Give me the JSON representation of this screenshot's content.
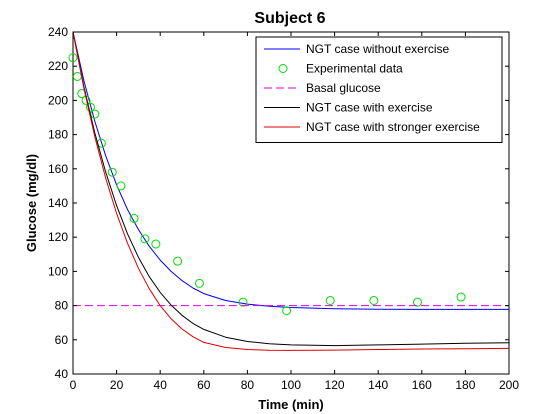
{
  "chart_data": {
    "type": "line",
    "title": "Subject 6",
    "xlabel": "Time (min)",
    "ylabel": "Glucose (mg/dl)",
    "xlim": [
      0,
      200
    ],
    "ylim": [
      40,
      240
    ],
    "xticks": [
      0,
      20,
      40,
      60,
      80,
      100,
      120,
      140,
      160,
      180,
      200
    ],
    "yticks": [
      40,
      60,
      80,
      100,
      120,
      140,
      160,
      180,
      200,
      220,
      240
    ],
    "grid": false,
    "legend_position": "top-right",
    "series": [
      {
        "name": "NGT case without exercise",
        "color": "#0000ff",
        "style": "solid",
        "x": [
          0,
          5,
          10,
          15,
          20,
          25,
          30,
          35,
          40,
          45,
          50,
          55,
          60,
          70,
          80,
          90,
          100,
          120,
          140,
          160,
          180,
          200
        ],
        "y": [
          240,
          211.5,
          187.8,
          167.6,
          150.6,
          136.2,
          124.5,
          114.7,
          106.6,
          100.0,
          94.6,
          90.3,
          87.0,
          83.0,
          80.9,
          79.6,
          78.9,
          78.2,
          77.9,
          77.8,
          77.8,
          77.8
        ]
      },
      {
        "name": "Experimental data",
        "color": "#00dd00",
        "style": "markers",
        "x": [
          0,
          2,
          4,
          6,
          8,
          10,
          13,
          18,
          22,
          28,
          33,
          38,
          48,
          58,
          78,
          98,
          118,
          138,
          158,
          178
        ],
        "y": [
          225,
          214,
          204,
          200,
          196,
          192,
          175,
          158,
          150,
          131,
          119,
          116,
          106,
          93,
          82,
          77,
          83,
          83,
          82,
          85
        ]
      },
      {
        "name": "Basal glucose",
        "color": "#dd00dd",
        "style": "dashed",
        "x": [
          0,
          200
        ],
        "y": [
          80,
          80
        ]
      },
      {
        "name": "NGT case with exercise",
        "color": "#000000",
        "style": "solid",
        "x": [
          0,
          5,
          10,
          15,
          20,
          25,
          30,
          35,
          40,
          45,
          50,
          55,
          60,
          70,
          80,
          90,
          100,
          120,
          140,
          160,
          180,
          200
        ],
        "y": [
          240,
          208,
          181,
          158,
          138.5,
          122,
          108.3,
          96.9,
          87.7,
          80.3,
          74.3,
          69.6,
          66.1,
          61.5,
          59.0,
          57.7,
          57.0,
          56.6,
          57.0,
          57.5,
          58.0,
          58.3
        ]
      },
      {
        "name": "NGT case with stronger exercise",
        "color": "#dd0000",
        "style": "solid",
        "x": [
          0,
          5,
          10,
          15,
          20,
          25,
          30,
          35,
          40,
          45,
          50,
          55,
          60,
          70,
          80,
          90,
          100,
          120,
          140,
          160,
          180,
          200
        ],
        "y": [
          240,
          207,
          178.8,
          154.5,
          133.9,
          116.5,
          101.9,
          89.8,
          80.0,
          72.3,
          66.3,
          61.8,
          58.5,
          55.5,
          54.3,
          53.9,
          53.8,
          54.0,
          54.3,
          54.6,
          54.8,
          55.0
        ]
      }
    ]
  }
}
